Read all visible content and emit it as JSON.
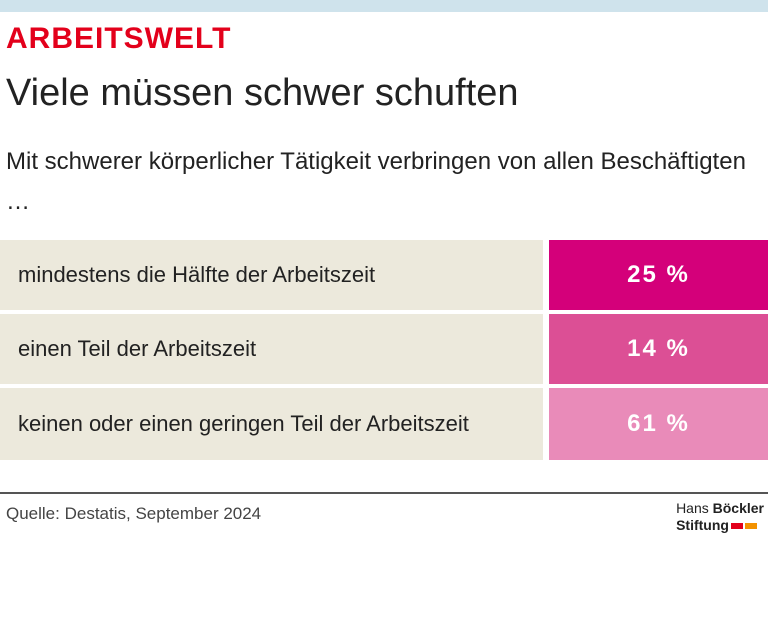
{
  "header": {
    "kicker": "ARBEITSWELT",
    "title": "Viele müssen schwer schuften",
    "subtitle": "Mit schwerer körperlicher Tätigkeit verbringen von allen Beschäftigten …"
  },
  "table": {
    "rows": [
      {
        "label": "mindestens die Hälfte der Arbeitszeit",
        "value": "25 %",
        "color": "#d4007a"
      },
      {
        "label": "einen Teil der Arbeitszeit",
        "value": "14 %",
        "color": "#dc4f95"
      },
      {
        "label": "keinen oder einen geringen Teil der Arbeitszeit",
        "value": "61 %",
        "color": "#e98bb9"
      }
    ]
  },
  "footer": {
    "source": "Quelle: Destatis, September 2024",
    "logo": [
      "Hans",
      "Böckler",
      "Stiftung"
    ]
  }
}
